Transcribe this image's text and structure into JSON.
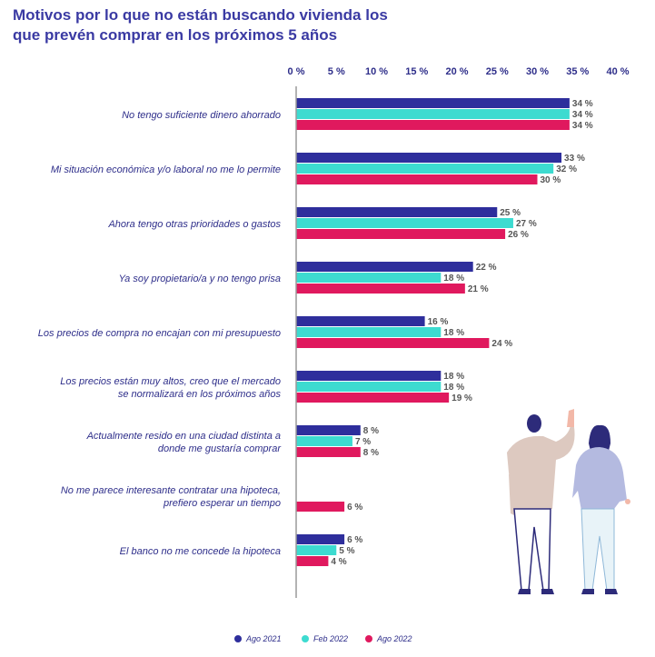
{
  "chart_data": {
    "type": "bar",
    "orientation": "horizontal",
    "title_lines": [
      "Motivos por lo que no están buscando vivienda los",
      "que prevén comprar en los próximos 5 años"
    ],
    "xlim": [
      0,
      40
    ],
    "ticks": [
      "0 %",
      "5 %",
      "10 %",
      "15 %",
      "20 %",
      "25 %",
      "30 %",
      "35 %",
      "40 %"
    ],
    "tick_values": [
      0,
      5,
      10,
      15,
      20,
      25,
      30,
      35,
      40
    ],
    "categories": [
      [
        "No tengo suficiente dinero ahorrado"
      ],
      [
        "Mi situación económica y/o laboral no me lo permite"
      ],
      [
        "Ahora tengo otras prioridades o gastos"
      ],
      [
        "Ya soy propietario/a y no tengo prisa"
      ],
      [
        "Los precios de compra no encajan con mi presupuesto"
      ],
      [
        "Los precios están muy altos, creo que el mercado",
        "se normalizará en los próximos años"
      ],
      [
        "Actualmente resido en una ciudad distinta a",
        "donde me gustaría comprar"
      ],
      [
        "No me parece interesante contratar una hipoteca,",
        "prefiero esperar un tiempo"
      ],
      [
        "El banco no me concede la hipoteca"
      ]
    ],
    "series": [
      {
        "name": "Ago 2021",
        "color": "#2e2e9c",
        "values": [
          34,
          33,
          25,
          22,
          16,
          18,
          8,
          null,
          6
        ],
        "labels": [
          "34 %",
          "33 %",
          "25 %",
          "22 %",
          "16 %",
          "18 %",
          "8 %",
          null,
          "6 %"
        ]
      },
      {
        "name": "Feb 2022",
        "color": "#3ddbd0",
        "values": [
          34,
          32,
          27,
          18,
          18,
          18,
          7,
          null,
          5
        ],
        "labels": [
          "34 %",
          "32 %",
          "27 %",
          "18 %",
          "18 %",
          "18 %",
          "7 %",
          null,
          "5 %"
        ]
      },
      {
        "name": "Ago 2022",
        "color": "#e0195e",
        "values": [
          34,
          30,
          26,
          21,
          24,
          19,
          8,
          6,
          4
        ],
        "labels": [
          "34 %",
          "30 %",
          "26 %",
          "21 %",
          "24 %",
          "19 %",
          "8 %",
          "6 %",
          "4 %"
        ]
      }
    ]
  }
}
